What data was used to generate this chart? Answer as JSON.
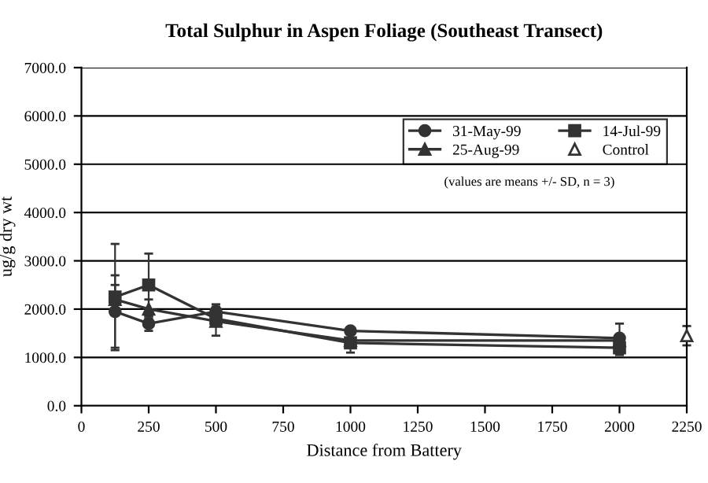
{
  "chart_data": {
    "type": "line",
    "title": "Total Sulphur in Aspen Foliage (Southeast Transect)",
    "xlabel": "Distance from Battery",
    "ylabel": "ug/g dry wt",
    "xlim": [
      0,
      2250
    ],
    "xticks": [
      0,
      250,
      500,
      750,
      1000,
      1250,
      1500,
      1750,
      2000,
      2250
    ],
    "ylim": [
      0,
      7000
    ],
    "yticks": [
      {
        "value": 0,
        "label": "0.0"
      },
      {
        "value": 1000,
        "label": "1000.0"
      },
      {
        "value": 2000,
        "label": "2000.0"
      },
      {
        "value": 3000,
        "label": "3000.0"
      },
      {
        "value": 4000,
        "label": "4000.0"
      },
      {
        "value": 5000,
        "label": "5000.0"
      },
      {
        "value": 6000,
        "label": "6000.0"
      },
      {
        "value": 7000,
        "label": "7000.0"
      }
    ],
    "grid": "y",
    "legend": "top right",
    "series": [
      {
        "name": "31-May-99",
        "color": "#333333",
        "marker": "circle",
        "x": [
          125,
          250,
          500,
          1000,
          2000
        ],
        "values": [
          1950,
          1700,
          1950,
          1550,
          1400
        ],
        "errors": [
          750,
          150,
          150,
          null,
          300
        ]
      },
      {
        "name": "14-Jul-99",
        "color": "#333333",
        "marker": "square",
        "x": [
          125,
          250,
          500,
          1000,
          2000
        ],
        "values": [
          2250,
          2500,
          1800,
          1300,
          1200
        ],
        "errors": [
          1100,
          650,
          null,
          200,
          150
        ]
      },
      {
        "name": "25-Aug-99",
        "color": "#333333",
        "marker": "triangle",
        "x": [
          125,
          250,
          500,
          1000,
          2000
        ],
        "values": [
          2200,
          2000,
          1750,
          1350,
          1350
        ],
        "errors": [
          300,
          200,
          300,
          null,
          null
        ]
      },
      {
        "name": "Control",
        "color": "#333333",
        "marker": "triangle",
        "type": "scatter",
        "x": [
          2250
        ],
        "values": [
          1450
        ],
        "errors": [
          200
        ]
      }
    ],
    "annotations": [
      "(values are means +/- SD, n = 3)"
    ]
  }
}
